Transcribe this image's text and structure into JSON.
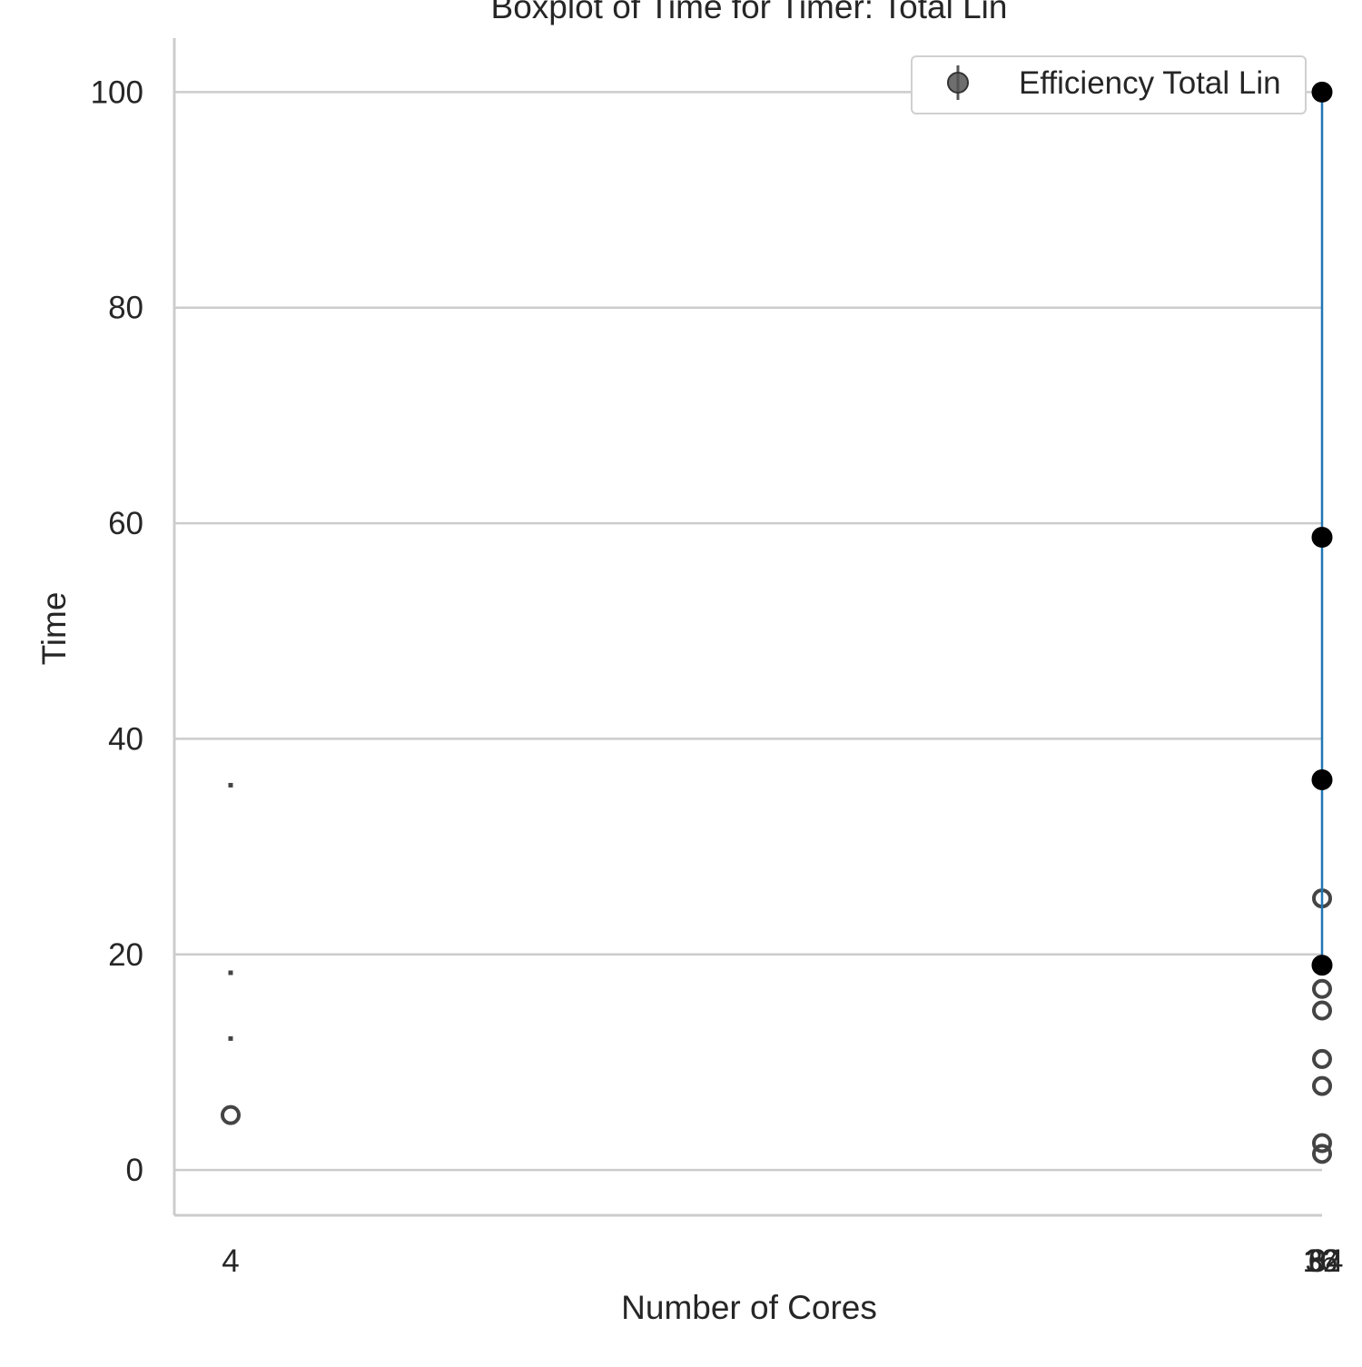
{
  "chart_data": {
    "type": "scatter",
    "title": "Boxplot of Time for Timer: Total Lin",
    "xlabel": "Number of Cores",
    "ylabel": "Time",
    "xlim": [
      4,
      64
    ],
    "ylim": [
      -4.2,
      105
    ],
    "y_ticks": [
      0,
      20,
      40,
      60,
      80,
      100
    ],
    "x_tick_labels": [
      "4",
      "8",
      "16",
      "32",
      "64"
    ],
    "grid": "horizontal",
    "legend": {
      "position": "top-right",
      "entries": [
        "Efficiency Total Lin"
      ]
    },
    "colors": {
      "line": "#1f77b4",
      "marker": "#000000",
      "outlier": "#444444",
      "grid": "#cccccc",
      "axis": "#cccccc"
    },
    "series": [
      {
        "name": "Efficiency Total Lin",
        "x": [
          64,
          64,
          64,
          64
        ],
        "y": [
          100,
          58.7,
          36.2,
          19.0
        ]
      }
    ],
    "outliers": [
      {
        "x": 4,
        "y": 5.1
      },
      {
        "x": 64,
        "y": 25.2
      },
      {
        "x": 64,
        "y": 16.8
      },
      {
        "x": 64,
        "y": 14.8
      },
      {
        "x": 64,
        "y": 10.3
      },
      {
        "x": 64,
        "y": 7.8
      },
      {
        "x": 64,
        "y": 2.5
      },
      {
        "x": 64,
        "y": 1.5
      }
    ],
    "box_marks": [
      {
        "x": 4,
        "y": 35.7
      },
      {
        "x": 4,
        "y": 18.3
      },
      {
        "x": 4,
        "y": 12.2
      }
    ]
  }
}
